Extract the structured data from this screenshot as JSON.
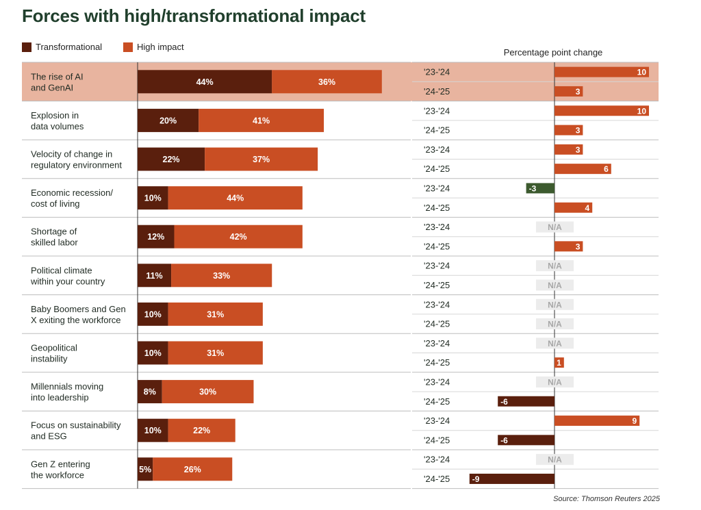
{
  "title": "Forces with high/transformational impact",
  "legend": [
    {
      "label": "Transformational",
      "color": "#5a1f0d"
    },
    {
      "label": "High impact",
      "color": "#c94e23"
    }
  ],
  "change_title": "Percentage point change",
  "source": "Source: Thomson Reuters 2025",
  "colors": {
    "transformational": "#5a1f0d",
    "high_impact": "#c94e23",
    "highlight": "#e8b49f",
    "decrease_green": "#3c5a2e",
    "na_bg": "#ececec"
  },
  "chart_data": [
    {
      "type": "bar",
      "stacked": true,
      "orientation": "horizontal",
      "title": "Forces with high/transformational impact",
      "categories": [
        [
          "The rise of AI",
          "and GenAI"
        ],
        [
          "Explosion in",
          "data volumes"
        ],
        [
          "Velocity of change in",
          "regulatory environment"
        ],
        [
          "Economic recession/",
          "cost of living"
        ],
        [
          "Shortage of",
          "skilled labor"
        ],
        [
          "Political climate",
          "within your country"
        ],
        [
          "Baby Boomers and Gen",
          "X exiting the workforce"
        ],
        [
          "Geopolitical",
          "instability"
        ],
        [
          "Millennials moving",
          "into leadership"
        ],
        [
          "Focus on sustainability",
          "and ESG"
        ],
        [
          "Gen Z entering",
          "the workforce"
        ]
      ],
      "series": [
        {
          "name": "Transformational",
          "values": [
            44,
            20,
            22,
            10,
            12,
            11,
            10,
            10,
            8,
            10,
            5
          ]
        },
        {
          "name": "High impact",
          "values": [
            36,
            41,
            37,
            44,
            42,
            33,
            31,
            31,
            30,
            22,
            26
          ]
        }
      ],
      "value_suffix": "%",
      "highlighted_category": 0,
      "xlim": [
        0,
        100
      ]
    },
    {
      "type": "bar",
      "orientation": "horizontal",
      "title": "Percentage point change",
      "periods": [
        "'23-'24",
        "'24-'25"
      ],
      "values": [
        [
          10,
          3
        ],
        [
          10,
          3
        ],
        [
          3,
          6
        ],
        [
          -3,
          4
        ],
        [
          null,
          3
        ],
        [
          null,
          null
        ],
        [
          null,
          null
        ],
        [
          null,
          1
        ],
        [
          null,
          -6
        ],
        [
          9,
          -6
        ],
        [
          null,
          -9
        ]
      ],
      "na_label": "N/A",
      "xlim": [
        -12,
        12
      ]
    }
  ]
}
